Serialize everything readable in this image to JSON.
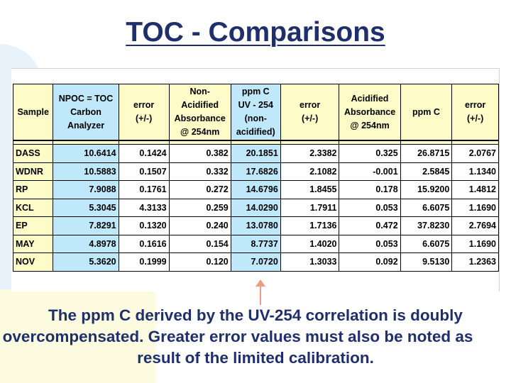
{
  "title": "TOC - Comparisons",
  "table": {
    "headers": [
      [
        "Sample"
      ],
      [
        "NPOC = TOC",
        "Carbon Analyzer"
      ],
      [
        "error",
        "(+/-)"
      ],
      [
        "Non-Acidified",
        "Absorbance",
        "@ 254nm"
      ],
      [
        "ppm C",
        "UV - 254",
        "(non-acidified)"
      ],
      [
        "error",
        "(+/-)"
      ],
      [
        "Acidified",
        "Absorbance",
        "@ 254nm"
      ],
      [
        "ppm C"
      ],
      [
        "error",
        "(+/-)"
      ]
    ],
    "rows": [
      [
        "DASS",
        "10.6414",
        "0.1424",
        "0.382",
        "20.1851",
        "2.3382",
        "0.325",
        "26.8715",
        "2.0767"
      ],
      [
        "WDNR",
        "10.5883",
        "0.1507",
        "0.332",
        "17.6826",
        "2.1082",
        "-0.001",
        "2.5845",
        "1.1340"
      ],
      [
        "RP",
        "7.9088",
        "0.1761",
        "0.272",
        "14.6796",
        "1.8455",
        "0.178",
        "15.9200",
        "1.4812"
      ],
      [
        "KCL",
        "5.3045",
        "4.3133",
        "0.259",
        "14.0290",
        "1.7911",
        "0.053",
        "6.6075",
        "1.1690"
      ],
      [
        "EP",
        "7.8291",
        "0.1320",
        "0.240",
        "13.0780",
        "1.7136",
        "0.472",
        "37.8230",
        "2.7694"
      ],
      [
        "MAY",
        "4.8978",
        "0.1616",
        "0.154",
        "8.7737",
        "1.4020",
        "0.053",
        "6.6075",
        "1.1690"
      ],
      [
        "NOV",
        "5.3620",
        "0.1999",
        "0.120",
        "7.0720",
        "1.3033",
        "0.092",
        "9.5130",
        "1.2363"
      ]
    ]
  },
  "caption": {
    "line1": "The ppm C derived by the UV-254 correlation is doubly",
    "line2": "overcompensated.  Greater error values must also be noted as",
    "line3": "result of the limited calibration."
  },
  "colors": {
    "title": "#1f2f6b",
    "header_fill": "#fdfcc8",
    "highlight_fill": "#bfe8fa",
    "arrow": "#e8a080"
  }
}
